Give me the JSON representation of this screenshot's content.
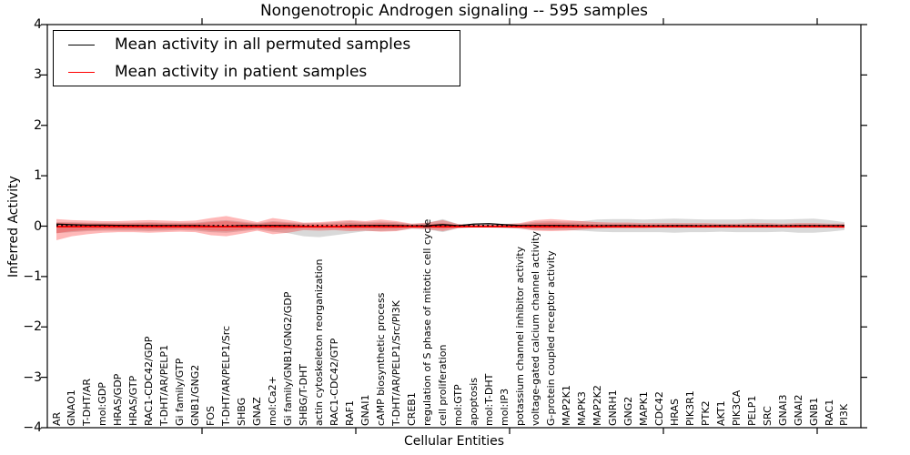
{
  "chart_data": {
    "type": "line",
    "title": "Nongenotropic Androgen signaling -- 595 samples",
    "xlabel": "Cellular Entities",
    "ylabel": "Inferred Activity",
    "ylim": [
      -4,
      4
    ],
    "yticks": [
      4,
      3,
      2,
      1,
      0,
      -1,
      -2,
      -3,
      -4
    ],
    "grid": false,
    "legend": {
      "position": "upper left",
      "entries": [
        {
          "label": "Mean activity in all permuted samples",
          "color": "#000000"
        },
        {
          "label": "Mean activity in patient samples",
          "color": "#ff0000"
        }
      ]
    },
    "categories": [
      "AR",
      "GNAO1",
      "T-DHT/AR",
      "mol:GDP",
      "HRAS/GDP",
      "HRAS/GTP",
      "RAC1-CDC42/GDP",
      "T-DHT/AR/PELP1",
      "Gi family/GTP",
      "GNB1/GNG2",
      "FOS",
      "T-DHT/AR/PELP1/Src",
      "SHBG",
      "GNAZ",
      "mol:Ca2+",
      "Gi family/GNB1/GNG2/GDP",
      "SHBG/T-DHT",
      "actin cytoskeleton reorganization",
      "RAC1-CDC42/GTP",
      "RAF1",
      "GNAI1",
      "cAMP biosynthetic process",
      "T-DHT/AR/PELP1/Src/PI3K",
      "CREB1",
      "regulation of S phase of mitotic cell cycle",
      "cell proliferation",
      "mol:GTP",
      "apoptosis",
      "mol:T-DHT",
      "mol:IP3",
      "potassium channel inhibitor activity",
      "voltage-gated calcium channel activity",
      "G-protein coupled receptor activity",
      "MAP2K1",
      "MAPK3",
      "MAP2K2",
      "GNRH1",
      "GNG2",
      "MAPK1",
      "CDC42",
      "HRAS",
      "PIK3R1",
      "PTK2",
      "AKT1",
      "PIK3CA",
      "PELP1",
      "SRC",
      "GNAI3",
      "GNAI2",
      "GNB1",
      "RAC1",
      "PI3K"
    ],
    "series": [
      {
        "name": "Mean activity in all permuted samples",
        "color": "#000000",
        "values": [
          0.04,
          0.03,
          0.02,
          0.02,
          0.015,
          0.012,
          0.01,
          0.01,
          0.01,
          0.01,
          0,
          -0.005,
          0.01,
          0.01,
          0.012,
          0.01,
          0,
          -0.015,
          -0.015,
          0.008,
          0.01,
          0.012,
          0.01,
          0.005,
          0.008,
          0.03,
          0.008,
          0.04,
          0.05,
          0.03,
          0.012,
          0.012,
          0.012,
          0.01,
          0.005,
          0.005,
          0.008,
          0.008,
          0.005,
          0.005,
          0.008,
          0.008,
          0.005,
          0.008,
          0.005,
          0.005,
          0.008,
          0.005,
          0.008,
          0.008,
          0.008,
          0.01
        ]
      },
      {
        "name": "Mean activity in patient samples",
        "color": "#ff0000",
        "values": [
          -0.01,
          -0.01,
          -0.01,
          -0.01,
          -0.01,
          -0.01,
          -0.01,
          -0.01,
          -0.01,
          -0.01,
          -0.01,
          -0.01,
          -0.01,
          -0.01,
          -0.01,
          -0.01,
          -0.01,
          -0.01,
          -0.01,
          -0.01,
          -0.01,
          -0.01,
          -0.01,
          -0.01,
          -0.01,
          -0.01,
          -0.01,
          -0.01,
          -0.01,
          -0.01,
          -0.01,
          -0.01,
          -0.01,
          -0.01,
          -0.01,
          -0.01,
          -0.01,
          -0.01,
          -0.01,
          -0.01,
          -0.01,
          -0.01,
          -0.01,
          -0.01,
          -0.01,
          -0.01,
          -0.01,
          -0.01,
          -0.01,
          -0.01,
          -0.01,
          -0.01
        ]
      }
    ],
    "dotted_line_y": 0.012,
    "bands": [
      {
        "name": "permuted-samples-std-band",
        "color": "#808080",
        "opacity": 0.3,
        "upper": [
          0.08,
          0.08,
          0.07,
          0.07,
          0.07,
          0.07,
          0.08,
          0.07,
          0.07,
          0.07,
          0.1,
          0.12,
          0.09,
          0.06,
          0.1,
          0.08,
          0.06,
          0.06,
          0.08,
          0.1,
          0.08,
          0.09,
          0.08,
          0.04,
          0.06,
          0.14,
          0.04,
          0.03,
          0.04,
          0.04,
          0.05,
          0.09,
          0.1,
          0.09,
          0.1,
          0.13,
          0.14,
          0.14,
          0.13,
          0.14,
          0.15,
          0.14,
          0.13,
          0.13,
          0.13,
          0.14,
          0.13,
          0.13,
          0.14,
          0.15,
          0.12,
          0.08
        ],
        "lower": [
          -0.14,
          -0.12,
          -0.1,
          -0.09,
          -0.09,
          -0.09,
          -0.1,
          -0.09,
          -0.08,
          -0.09,
          -0.12,
          -0.13,
          -0.1,
          -0.07,
          -0.11,
          -0.14,
          -0.2,
          -0.22,
          -0.18,
          -0.14,
          -0.1,
          -0.1,
          -0.09,
          -0.05,
          -0.06,
          -0.12,
          -0.04,
          -0.03,
          -0.03,
          -0.04,
          -0.05,
          -0.08,
          -0.08,
          -0.08,
          -0.09,
          -0.11,
          -0.12,
          -0.12,
          -0.12,
          -0.12,
          -0.13,
          -0.12,
          -0.12,
          -0.11,
          -0.12,
          -0.12,
          -0.12,
          -0.11,
          -0.13,
          -0.13,
          -0.11,
          -0.08
        ]
      },
      {
        "name": "patient-samples-std-band",
        "color": "#ff0000",
        "opacity": 0.28,
        "upper": [
          0.14,
          0.12,
          0.11,
          0.1,
          0.1,
          0.11,
          0.12,
          0.11,
          0.1,
          0.11,
          0.16,
          0.2,
          0.14,
          0.08,
          0.16,
          0.12,
          0.07,
          0.08,
          0.1,
          0.12,
          0.1,
          0.13,
          0.1,
          0.05,
          0.07,
          0.12,
          0.04,
          0.03,
          0.03,
          0.04,
          0.06,
          0.12,
          0.14,
          0.12,
          0.1,
          0.08,
          0.07,
          0.07,
          0.06,
          0.06,
          0.06,
          0.06,
          0.06,
          0.05,
          0.05,
          0.06,
          0.06,
          0.05,
          0.06,
          0.06,
          0.05,
          0.05
        ],
        "lower": [
          -0.28,
          -0.2,
          -0.16,
          -0.13,
          -0.12,
          -0.12,
          -0.13,
          -0.12,
          -0.11,
          -0.12,
          -0.18,
          -0.2,
          -0.15,
          -0.09,
          -0.16,
          -0.13,
          -0.08,
          -0.09,
          -0.08,
          -0.1,
          -0.09,
          -0.11,
          -0.1,
          -0.05,
          -0.06,
          -0.1,
          -0.04,
          -0.02,
          -0.02,
          -0.03,
          -0.05,
          -0.09,
          -0.1,
          -0.09,
          -0.07,
          -0.05,
          -0.04,
          -0.04,
          -0.04,
          -0.03,
          -0.03,
          -0.03,
          -0.03,
          -0.03,
          -0.03,
          -0.03,
          -0.03,
          -0.03,
          -0.03,
          -0.03,
          -0.03,
          -0.04
        ]
      }
    ]
  }
}
